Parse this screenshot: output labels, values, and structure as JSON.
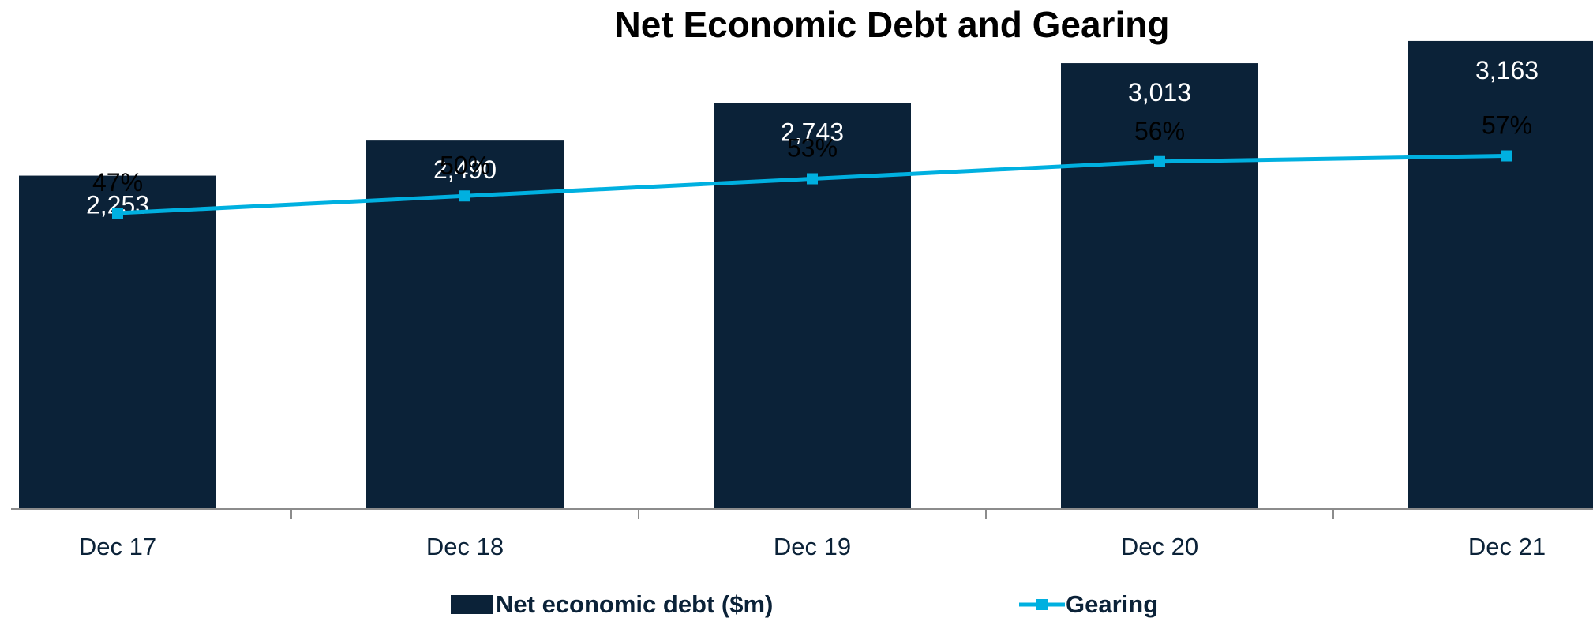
{
  "chart_data": {
    "type": "bar",
    "title": "Net Economic Debt and Gearing",
    "categories": [
      "Dec 17",
      "Dec 18",
      "Dec 19",
      "Dec 20",
      "Dec 21"
    ],
    "series": [
      {
        "name": "Net economic debt ($m)",
        "type": "bar",
        "values": [
          2253,
          2490,
          2743,
          3013,
          3163
        ],
        "labels": [
          "2,253",
          "2,490",
          "2,743",
          "3,013",
          "3,163"
        ],
        "color": "#0b2238"
      },
      {
        "name": "Gearing",
        "type": "line",
        "values": [
          47,
          50,
          53,
          56,
          57
        ],
        "labels": [
          "47%",
          "50%",
          "53%",
          "56%",
          "57%"
        ],
        "color": "#00b0e0",
        "marker": "square"
      }
    ],
    "xlabel": "",
    "ylabel": "",
    "grid": false,
    "legend": "bottom"
  }
}
